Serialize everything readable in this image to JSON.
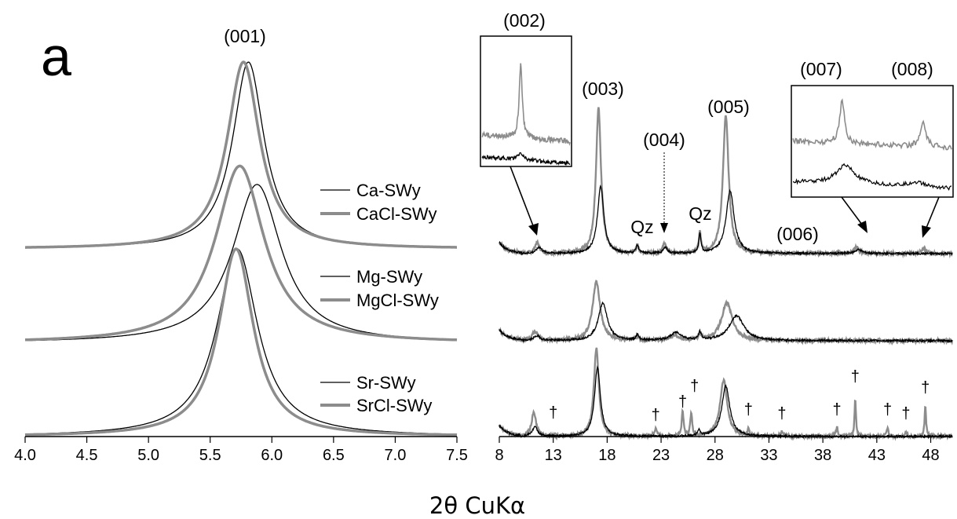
{
  "panel_label": "a",
  "axis_title": "2θ CuKα",
  "colors": {
    "untreated": "#000000",
    "chloride": "#8c8c8c"
  },
  "chart_data": [
    {
      "type": "line",
      "panel": "left",
      "xlim": [
        4.0,
        7.5
      ],
      "xticks": [
        "4.0",
        "4.5",
        "5.0",
        "5.5",
        "6.0",
        "6.5",
        "7.0",
        "7.5"
      ],
      "peak_label": "(001)",
      "series": [
        {
          "name": "Ca-SWy",
          "group": 0,
          "color": "black",
          "peak_x": 5.81,
          "hwhm": 0.155,
          "rel_height": 1.0
        },
        {
          "name": "CaCl-SWy",
          "group": 0,
          "color": "gray",
          "peak_x": 5.77,
          "hwhm": 0.16,
          "rel_height": 1.0
        },
        {
          "name": "Mg-SWy",
          "group": 1,
          "color": "black",
          "peak_x": 5.88,
          "hwhm": 0.24,
          "rel_height": 0.86
        },
        {
          "name": "MgCl-SWy",
          "group": 1,
          "color": "gray",
          "peak_x": 5.74,
          "hwhm": 0.24,
          "rel_height": 0.96
        },
        {
          "name": "Sr-SWy",
          "group": 2,
          "color": "black",
          "peak_x": 5.72,
          "hwhm": 0.2,
          "rel_height": 1.0
        },
        {
          "name": "SrCl-SWy",
          "group": 2,
          "color": "gray",
          "peak_x": 5.71,
          "hwhm": 0.17,
          "rel_height": 1.0
        }
      ]
    },
    {
      "type": "line",
      "panel": "right",
      "xlim": [
        8,
        50
      ],
      "xticks": [
        "8",
        "13",
        "18",
        "23",
        "28",
        "33",
        "38",
        "43",
        "48"
      ],
      "labels": [
        "(002)",
        "(003)",
        "(004)",
        "Qz",
        "(005)",
        "Qz",
        "(006)",
        "(007)",
        "(008)"
      ],
      "impurity_marker": "†",
      "impurity_positions": [
        13,
        22.5,
        25.0,
        26.1,
        31.1,
        34.2,
        39.3,
        41.0,
        44.0,
        45.7,
        47.5
      ],
      "series": [
        {
          "group": 0,
          "color": "gray",
          "peaks": [
            [
              11.5,
              14,
              0.25
            ],
            [
              17.2,
              185,
              0.28
            ],
            [
              20.8,
              10,
              0.15
            ],
            [
              23.3,
              12,
              0.2
            ],
            [
              26.6,
              25,
              0.12
            ],
            [
              29.0,
              175,
              0.32
            ],
            [
              41.1,
              9,
              0.25
            ],
            [
              47.4,
              6,
              0.25
            ]
          ]
        },
        {
          "group": 0,
          "color": "black",
          "peaks": [
            [
              11.7,
              8,
              0.3
            ],
            [
              17.4,
              85,
              0.35
            ],
            [
              20.8,
              10,
              0.15
            ],
            [
              23.4,
              8,
              0.2
            ],
            [
              26.6,
              25,
              0.12
            ],
            [
              29.4,
              80,
              0.45
            ],
            [
              41.3,
              5,
              0.4
            ]
          ]
        },
        {
          "group": 1,
          "color": "gray",
          "peaks": [
            [
              11.3,
              11,
              0.35
            ],
            [
              17.0,
              75,
              0.42
            ],
            [
              20.8,
              5,
              0.15
            ],
            [
              24.2,
              6,
              0.5
            ],
            [
              26.6,
              8,
              0.15
            ],
            [
              29.1,
              48,
              0.6
            ]
          ]
        },
        {
          "group": 1,
          "color": "black",
          "peaks": [
            [
              11.5,
              6,
              0.35
            ],
            [
              17.6,
              48,
              0.5
            ],
            [
              20.8,
              7,
              0.15
            ],
            [
              24.4,
              10,
              0.6
            ],
            [
              26.6,
              10,
              0.15
            ],
            [
              30.0,
              32,
              0.8
            ]
          ]
        },
        {
          "group": 2,
          "color": "gray",
          "peaks": [
            [
              11.2,
              30,
              0.25
            ],
            [
              17.0,
              112,
              0.28
            ],
            [
              22.5,
              10,
              0.15
            ],
            [
              25.0,
              32,
              0.1
            ],
            [
              25.8,
              30,
              0.1
            ],
            [
              28.8,
              72,
              0.4
            ],
            [
              31.1,
              8,
              0.1
            ],
            [
              34.2,
              6,
              0.1
            ],
            [
              39.3,
              12,
              0.1
            ],
            [
              41.0,
              48,
              0.08
            ],
            [
              44.0,
              10,
              0.1
            ],
            [
              45.7,
              6,
              0.1
            ],
            [
              47.5,
              40,
              0.08
            ]
          ]
        },
        {
          "group": 2,
          "color": "black",
          "peaks": [
            [
              11.3,
              12,
              0.3
            ],
            [
              17.1,
              88,
              0.33
            ],
            [
              26.5,
              8,
              0.15
            ],
            [
              29.0,
              64,
              0.45
            ]
          ]
        }
      ]
    }
  ]
}
